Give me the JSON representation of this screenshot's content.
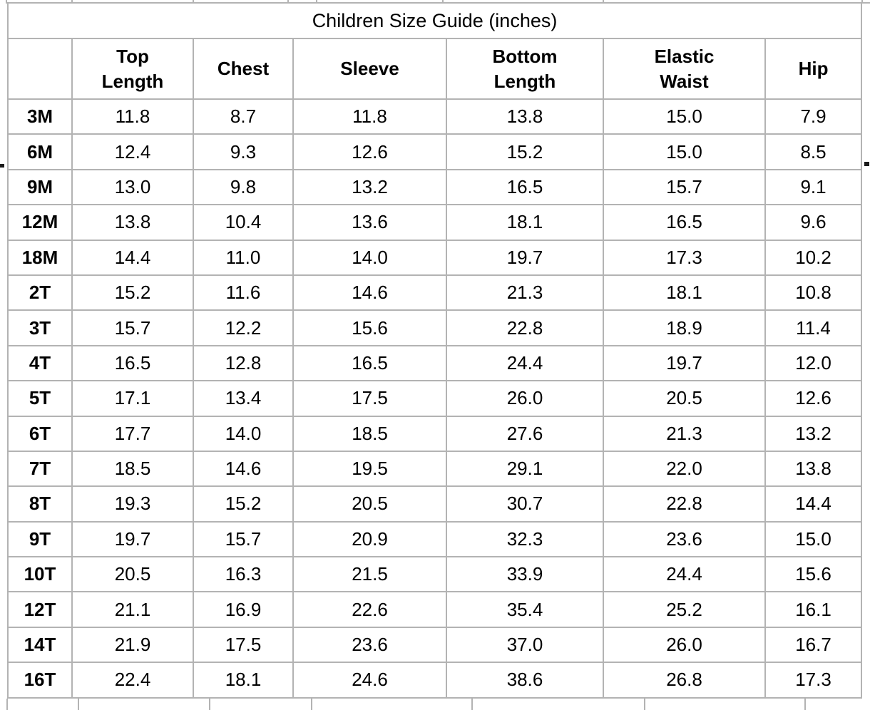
{
  "title": "Children Size Guide (inches)",
  "table": {
    "corner_label": "",
    "columns": [
      {
        "label_lines": [
          "Top",
          "Length"
        ]
      },
      {
        "label_lines": [
          "Chest"
        ]
      },
      {
        "label_lines": [
          "Sleeve"
        ]
      },
      {
        "label_lines": [
          "Bottom",
          "Length"
        ]
      },
      {
        "label_lines": [
          "Elastic",
          "Waist"
        ]
      },
      {
        "label_lines": [
          "Hip"
        ]
      }
    ],
    "rows": [
      {
        "size": "3M",
        "values": [
          "11.8",
          "8.7",
          "11.8",
          "13.8",
          "15.0",
          "7.9"
        ]
      },
      {
        "size": "6M",
        "values": [
          "12.4",
          "9.3",
          "12.6",
          "15.2",
          "15.0",
          "8.5"
        ]
      },
      {
        "size": "9M",
        "values": [
          "13.0",
          "9.8",
          "13.2",
          "16.5",
          "15.7",
          "9.1"
        ]
      },
      {
        "size": "12M",
        "values": [
          "13.8",
          "10.4",
          "13.6",
          "18.1",
          "16.5",
          "9.6"
        ]
      },
      {
        "size": "18M",
        "values": [
          "14.4",
          "11.0",
          "14.0",
          "19.7",
          "17.3",
          "10.2"
        ]
      },
      {
        "size": "2T",
        "values": [
          "15.2",
          "11.6",
          "14.6",
          "21.3",
          "18.1",
          "10.8"
        ]
      },
      {
        "size": "3T",
        "values": [
          "15.7",
          "12.2",
          "15.6",
          "22.8",
          "18.9",
          "11.4"
        ]
      },
      {
        "size": "4T",
        "values": [
          "16.5",
          "12.8",
          "16.5",
          "24.4",
          "19.7",
          "12.0"
        ]
      },
      {
        "size": "5T",
        "values": [
          "17.1",
          "13.4",
          "17.5",
          "26.0",
          "20.5",
          "12.6"
        ]
      },
      {
        "size": "6T",
        "values": [
          "17.7",
          "14.0",
          "18.5",
          "27.6",
          "21.3",
          "13.2"
        ]
      },
      {
        "size": "7T",
        "values": [
          "18.5",
          "14.6",
          "19.5",
          "29.1",
          "22.0",
          "13.8"
        ]
      },
      {
        "size": "8T",
        "values": [
          "19.3",
          "15.2",
          "20.5",
          "30.7",
          "22.8",
          "14.4"
        ]
      },
      {
        "size": "9T",
        "values": [
          "19.7",
          "15.7",
          "20.9",
          "32.3",
          "23.6",
          "15.0"
        ]
      },
      {
        "size": "10T",
        "values": [
          "20.5",
          "16.3",
          "21.5",
          "33.9",
          "24.4",
          "15.6"
        ]
      },
      {
        "size": "12T",
        "values": [
          "21.1",
          "16.9",
          "22.6",
          "35.4",
          "25.2",
          "16.1"
        ]
      },
      {
        "size": "14T",
        "values": [
          "21.9",
          "17.5",
          "23.6",
          "37.0",
          "26.0",
          "16.7"
        ]
      },
      {
        "size": "16T",
        "values": [
          "22.4",
          "18.1",
          "24.6",
          "38.6",
          "26.8",
          "17.3"
        ]
      }
    ]
  },
  "colors": {
    "grid": "#b3b3b3",
    "text": "#000000",
    "background": "#ffffff"
  }
}
